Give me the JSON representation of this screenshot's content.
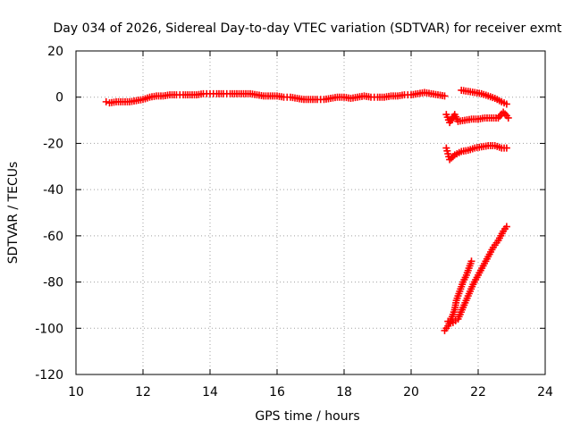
{
  "chart_data": {
    "type": "scatter",
    "title": "Day 034 of 2026, Sidereal Day-to-day VTEC variation (SDTVAR) for receiver exmt",
    "xlabel": "GPS time / hours",
    "ylabel": "SDTVAR / TECUs",
    "xlim": [
      10,
      24
    ],
    "ylim": [
      -120,
      20
    ],
    "x_ticks": [
      "10",
      "12",
      "14",
      "16",
      "18",
      "20",
      "22",
      "24"
    ],
    "y_ticks": [
      "20",
      "0",
      "-20",
      "-40",
      "-60",
      "-80",
      "-100",
      "-120"
    ],
    "grid": true,
    "marker": "+",
    "color": "#ff0000",
    "series": [
      {
        "name": "main",
        "points": [
          [
            10.9,
            -2
          ],
          [
            11.0,
            -2.5
          ],
          [
            11.2,
            -2
          ],
          [
            11.4,
            -2
          ],
          [
            11.6,
            -2
          ],
          [
            11.8,
            -1.5
          ],
          [
            12.0,
            -1
          ],
          [
            12.2,
            0
          ],
          [
            12.4,
            0.5
          ],
          [
            12.6,
            0.5
          ],
          [
            12.8,
            1
          ],
          [
            13.0,
            1
          ],
          [
            13.2,
            1
          ],
          [
            13.4,
            1
          ],
          [
            13.6,
            1
          ],
          [
            13.8,
            1.5
          ],
          [
            14.0,
            1.5
          ],
          [
            14.2,
            1.5
          ],
          [
            14.4,
            1.5
          ],
          [
            14.6,
            1.5
          ],
          [
            14.8,
            1.5
          ],
          [
            15.0,
            1.5
          ],
          [
            15.2,
            1.5
          ],
          [
            15.4,
            1
          ],
          [
            15.6,
            0.5
          ],
          [
            15.8,
            0.5
          ],
          [
            16.0,
            0.5
          ],
          [
            16.2,
            0
          ],
          [
            16.4,
            0
          ],
          [
            16.6,
            -0.5
          ],
          [
            16.8,
            -1
          ],
          [
            17.0,
            -1
          ],
          [
            17.2,
            -1
          ],
          [
            17.4,
            -1
          ],
          [
            17.6,
            -0.5
          ],
          [
            17.8,
            0
          ],
          [
            18.0,
            0
          ],
          [
            18.2,
            -0.5
          ],
          [
            18.4,
            0
          ],
          [
            18.6,
            0.5
          ],
          [
            18.8,
            0
          ],
          [
            19.0,
            0
          ],
          [
            19.2,
            0
          ],
          [
            19.4,
            0.5
          ],
          [
            19.6,
            0.5
          ],
          [
            19.8,
            1
          ],
          [
            20.0,
            1
          ],
          [
            20.2,
            1.5
          ],
          [
            20.4,
            2
          ],
          [
            20.6,
            1.5
          ],
          [
            20.8,
            1
          ],
          [
            21.0,
            0.5
          ]
        ]
      },
      {
        "name": "arc-upper",
        "points": [
          [
            21.5,
            3
          ],
          [
            21.7,
            2.5
          ],
          [
            21.9,
            2
          ],
          [
            22.1,
            1.5
          ],
          [
            22.3,
            0.5
          ],
          [
            22.5,
            -0.5
          ],
          [
            22.7,
            -2
          ],
          [
            22.85,
            -3
          ]
        ]
      },
      {
        "name": "arc-10",
        "points": [
          [
            21.05,
            -7.5
          ],
          [
            21.15,
            -11
          ],
          [
            21.3,
            -7.5
          ],
          [
            21.4,
            -10.5
          ],
          [
            21.6,
            -10
          ],
          [
            21.8,
            -9.5
          ],
          [
            22.0,
            -9.5
          ],
          [
            22.2,
            -9
          ],
          [
            22.4,
            -9
          ],
          [
            22.6,
            -9
          ],
          [
            22.75,
            -6.5
          ],
          [
            22.85,
            -8
          ],
          [
            22.9,
            -9
          ]
        ]
      },
      {
        "name": "arc-22",
        "points": [
          [
            21.05,
            -22
          ],
          [
            21.15,
            -27
          ],
          [
            21.3,
            -25
          ],
          [
            21.5,
            -23.5
          ],
          [
            21.7,
            -23
          ],
          [
            21.9,
            -22
          ],
          [
            22.1,
            -21.5
          ],
          [
            22.3,
            -21
          ],
          [
            22.5,
            -21
          ],
          [
            22.7,
            -22
          ],
          [
            22.85,
            -22
          ]
        ]
      },
      {
        "name": "ramp-left",
        "points": [
          [
            21.0,
            -101
          ],
          [
            21.1,
            -99
          ],
          [
            21.2,
            -96
          ],
          [
            21.3,
            -92
          ],
          [
            21.35,
            -88
          ],
          [
            21.45,
            -84
          ],
          [
            21.55,
            -80
          ],
          [
            21.65,
            -77
          ],
          [
            21.75,
            -73
          ],
          [
            21.8,
            -71
          ]
        ]
      },
      {
        "name": "ramp-right",
        "points": [
          [
            21.1,
            -97
          ],
          [
            21.25,
            -97.5
          ],
          [
            21.4,
            -96
          ],
          [
            21.55,
            -91
          ],
          [
            21.7,
            -86
          ],
          [
            21.85,
            -81
          ],
          [
            22.0,
            -77
          ],
          [
            22.15,
            -73
          ],
          [
            22.3,
            -69
          ],
          [
            22.45,
            -65
          ],
          [
            22.6,
            -62
          ],
          [
            22.75,
            -58
          ],
          [
            22.85,
            -56
          ]
        ]
      }
    ]
  }
}
